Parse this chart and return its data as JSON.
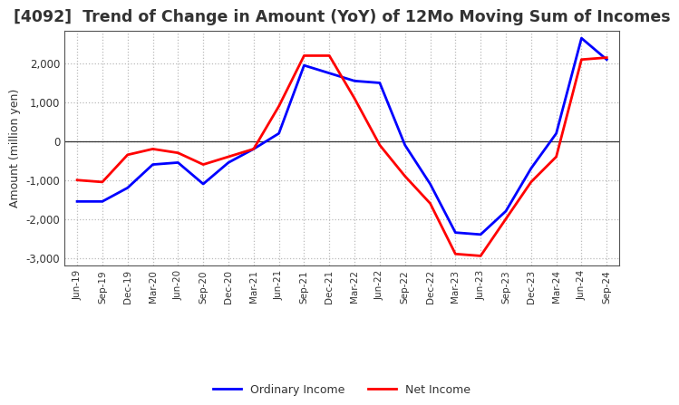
{
  "title": "[4092]  Trend of Change in Amount (YoY) of 12Mo Moving Sum of Incomes",
  "ylabel": "Amount (million yen)",
  "x_labels": [
    "Jun-19",
    "Sep-19",
    "Dec-19",
    "Mar-20",
    "Jun-20",
    "Sep-20",
    "Dec-20",
    "Mar-21",
    "Jun-21",
    "Sep-21",
    "Dec-21",
    "Mar-22",
    "Jun-22",
    "Sep-22",
    "Dec-22",
    "Mar-23",
    "Jun-23",
    "Sep-23",
    "Dec-23",
    "Mar-24",
    "Jun-24",
    "Sep-24"
  ],
  "ordinary_income": [
    -1550,
    -1550,
    -1200,
    -600,
    -550,
    -1100,
    -550,
    -200,
    200,
    1950,
    1750,
    1550,
    1500,
    -100,
    -1100,
    -2350,
    -2400,
    -1800,
    -700,
    200,
    2650,
    2100
  ],
  "net_income": [
    -1000,
    -1050,
    -350,
    -200,
    -300,
    -600,
    -400,
    -200,
    900,
    2200,
    2200,
    1100,
    -100,
    -900,
    -1600,
    -2900,
    -2950,
    -2000,
    -1050,
    -400,
    2100,
    2150
  ],
  "ordinary_income_color": "#0000ff",
  "net_income_color": "#ff0000",
  "ylim": [
    -3200,
    2850
  ],
  "yticks": [
    -3000,
    -2000,
    -1000,
    0,
    1000,
    2000
  ],
  "background_color": "#ffffff",
  "grid_color": "#bbbbbb",
  "line_width": 2.0,
  "title_fontsize": 12.5,
  "title_color": "#333333",
  "legend_labels": [
    "Ordinary Income",
    "Net Income"
  ]
}
